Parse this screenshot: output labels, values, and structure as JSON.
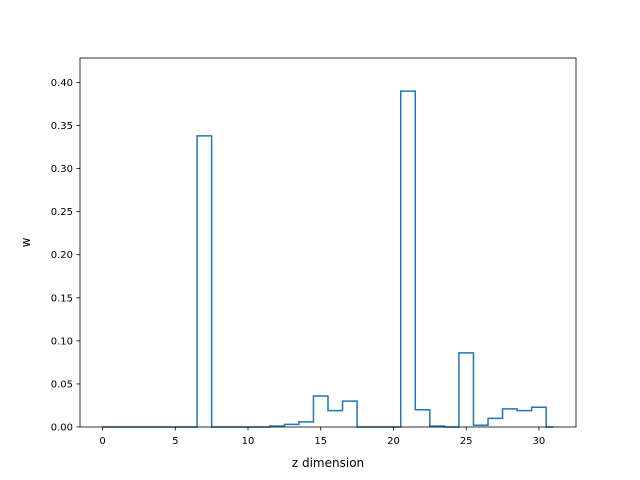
{
  "chart_data": {
    "type": "step",
    "title": "",
    "xlabel": "z dimension",
    "ylabel": "w",
    "xlim": [
      -1.55,
      32.55
    ],
    "ylim": [
      0,
      0.4284
    ],
    "xticks": [
      0,
      5,
      10,
      15,
      20,
      25,
      30
    ],
    "yticks": [
      0.0,
      0.05,
      0.1,
      0.15,
      0.2,
      0.25,
      0.3,
      0.35,
      0.4
    ],
    "ytick_labels": [
      "0.00",
      "0.05",
      "0.10",
      "0.15",
      "0.20",
      "0.25",
      "0.30",
      "0.35",
      "0.40"
    ],
    "grid": false,
    "bins_x": [
      0,
      1,
      2,
      3,
      4,
      5,
      6,
      7,
      8,
      9,
      10,
      11,
      12,
      13,
      14,
      15,
      16,
      17,
      18,
      19,
      20,
      21,
      22,
      23,
      24,
      25,
      26,
      27,
      28,
      29,
      30,
      31
    ],
    "values": [
      0,
      0,
      0,
      0,
      0,
      0,
      0,
      0.338,
      0,
      0,
      0,
      0,
      0.001,
      0.003,
      0.006,
      0.036,
      0.019,
      0.03,
      0,
      0,
      0,
      0.39,
      0.02,
      0.001,
      0,
      0.086,
      0.002,
      0.01,
      0.021,
      0.019,
      0.023,
      0
    ],
    "line_color": "#1f77b4"
  }
}
